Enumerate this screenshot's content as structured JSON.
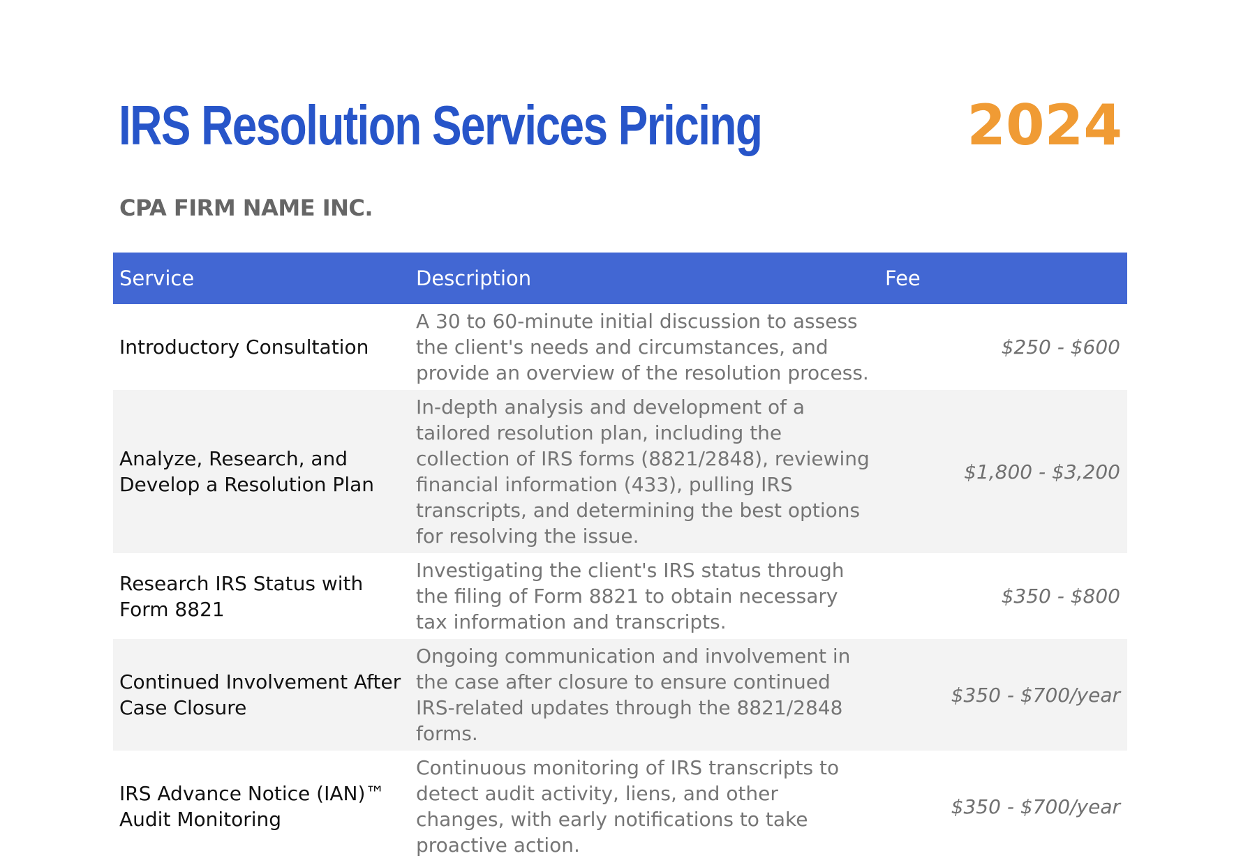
{
  "header": {
    "title": "IRS Resolution Services Pricing",
    "year": "2024",
    "firm_name": "CPA FIRM NAME INC."
  },
  "colors": {
    "title": "#2755c9",
    "year": "#f09b34",
    "table_header": "#4267d3",
    "row_alt": "#f3f3f3"
  },
  "table": {
    "columns": [
      "Service",
      "Description",
      "Fee"
    ],
    "rows": [
      {
        "service": "Introductory Consultation",
        "description": "A 30 to 60-minute initial discussion to assess the client's needs and circumstances, and provide an overview of the resolution process.",
        "fee": "$250 - $600"
      },
      {
        "service": "Analyze, Research, and Develop a Resolution Plan",
        "description": "In-depth analysis and development of a tailored resolution plan, including the collection of IRS forms (8821/2848), reviewing financial information (433), pulling IRS transcripts, and determining the best options for resolving the issue.",
        "fee": "$1,800 - $3,200"
      },
      {
        "service": "Research IRS Status with Form 8821",
        "description": "Investigating the client's IRS status through the filing of Form 8821 to obtain necessary tax information and transcripts.",
        "fee": "$350 - $800"
      },
      {
        "service": "Continued Involvement After Case Closure",
        "description": "Ongoing communication and involvement in the case after closure to ensure continued IRS-related updates through the 8821/2848 forms.",
        "fee": "$350 - $700/year"
      },
      {
        "service": "IRS Advance Notice (IAN)™ Audit Monitoring",
        "description": "Continuous monitoring of IRS transcripts to detect audit activity, liens, and other changes, with early notifications to take proactive action.",
        "fee": "$350 - $700/year"
      }
    ]
  }
}
